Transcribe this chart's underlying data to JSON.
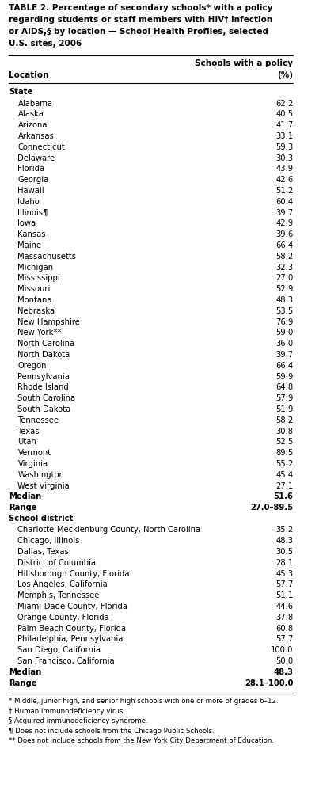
{
  "title_lines": [
    "TABLE 2. Percentage of secondary schools* with a policy",
    "regarding students or staff members with HIV† infection",
    "or AIDS,§ by location — School Health Profiles, selected",
    "U.S. sites, 2006"
  ],
  "col_header_1": "Schools with a policy",
  "col_header_2": "(%)",
  "col_location": "Location",
  "section_state": "State",
  "state_rows": [
    [
      "Alabama",
      "62.2"
    ],
    [
      "Alaska",
      "40.5"
    ],
    [
      "Arizona",
      "41.7"
    ],
    [
      "Arkansas",
      "33.1"
    ],
    [
      "Connecticut",
      "59.3"
    ],
    [
      "Delaware",
      "30.3"
    ],
    [
      "Florida",
      "43.9"
    ],
    [
      "Georgia",
      "42.6"
    ],
    [
      "Hawaii",
      "51.2"
    ],
    [
      "Idaho",
      "60.4"
    ],
    [
      "Illinois¶",
      "39.7"
    ],
    [
      "Iowa",
      "42.9"
    ],
    [
      "Kansas",
      "39.6"
    ],
    [
      "Maine",
      "66.4"
    ],
    [
      "Massachusetts",
      "58.2"
    ],
    [
      "Michigan",
      "32.3"
    ],
    [
      "Mississippi",
      "27.0"
    ],
    [
      "Missouri",
      "52.9"
    ],
    [
      "Montana",
      "48.3"
    ],
    [
      "Nebraska",
      "53.5"
    ],
    [
      "New Hampshire",
      "76.9"
    ],
    [
      "New York**",
      "59.0"
    ],
    [
      "North Carolina",
      "36.0"
    ],
    [
      "North Dakota",
      "39.7"
    ],
    [
      "Oregon",
      "66.4"
    ],
    [
      "Pennsylvania",
      "59.9"
    ],
    [
      "Rhode Island",
      "64.8"
    ],
    [
      "South Carolina",
      "57.9"
    ],
    [
      "South Dakota",
      "51.9"
    ],
    [
      "Tennessee",
      "58.2"
    ],
    [
      "Texas",
      "30.8"
    ],
    [
      "Utah",
      "52.5"
    ],
    [
      "Vermont",
      "89.5"
    ],
    [
      "Virginia",
      "55.2"
    ],
    [
      "Washington",
      "45.4"
    ],
    [
      "West Virginia",
      "27.1"
    ]
  ],
  "state_median": [
    "Median",
    "51.6"
  ],
  "state_range": [
    "Range",
    "27.0–89.5"
  ],
  "section_district": "School district",
  "district_rows": [
    [
      "Charlotte-Mecklenburg County, North Carolina",
      "35.2"
    ],
    [
      "Chicago, Illinois",
      "48.3"
    ],
    [
      "Dallas, Texas",
      "30.5"
    ],
    [
      "District of Columbia",
      "28.1"
    ],
    [
      "Hillsborough County, Florida",
      "45.3"
    ],
    [
      "Los Angeles, California",
      "57.7"
    ],
    [
      "Memphis, Tennessee",
      "51.1"
    ],
    [
      "Miami-Dade County, Florida",
      "44.6"
    ],
    [
      "Orange County, Florida",
      "37.8"
    ],
    [
      "Palm Beach County, Florida",
      "60.8"
    ],
    [
      "Philadelphia, Pennsylvania",
      "57.7"
    ],
    [
      "San Diego, California",
      "100.0"
    ],
    [
      "San Francisco, California",
      "50.0"
    ]
  ],
  "district_median": [
    "Median",
    "48.3"
  ],
  "district_range": [
    "Range",
    "28.1–100.0"
  ],
  "footnotes": [
    "* Middle, junior high, and senior high schools with one or more of grades 6–12.",
    "† Human immunodeficiency virus.",
    "§ Acquired immunodeficiency syndrome.",
    "¶ Does not include schools from the Chicago Public Schools.",
    "** Does not include schools from the New York City Department of Education."
  ],
  "bg_color": "#ffffff",
  "text_color": "#000000",
  "title_fontsize": 7.5,
  "header_fontsize": 7.5,
  "row_fontsize": 7.2,
  "footnote_fontsize": 6.2
}
